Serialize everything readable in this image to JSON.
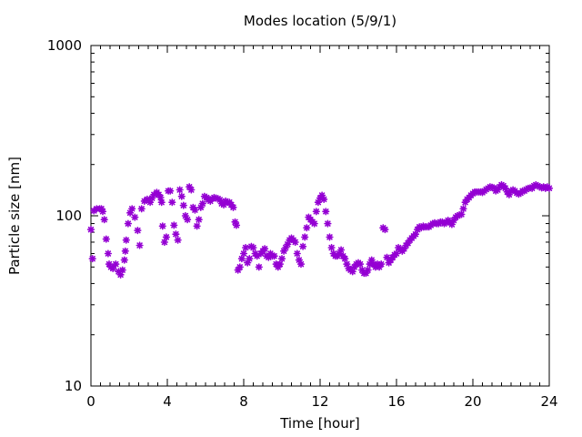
{
  "chart_data": {
    "type": "scatter",
    "title": "Modes location (5/9/1)",
    "xlabel": "Time [hour]",
    "ylabel": "Particle size [nm]",
    "xlim": [
      0,
      24
    ],
    "ylim": [
      10,
      1000
    ],
    "yscale": "log",
    "grid": false,
    "legend": "none",
    "marker_color": "#9400d3",
    "marker": "asterisk",
    "xticks": [
      "0",
      "4",
      "8",
      "12",
      "16",
      "20",
      "24"
    ],
    "yticks": [
      "10",
      "100",
      "1000"
    ],
    "series": [
      {
        "points": [
          [
            0.0,
            83
          ],
          [
            0.08,
            56
          ],
          [
            0.15,
            107
          ],
          [
            0.3,
            110
          ],
          [
            0.45,
            110
          ],
          [
            0.55,
            110
          ],
          [
            0.62,
            106
          ],
          [
            0.7,
            95
          ],
          [
            0.8,
            73
          ],
          [
            0.9,
            60
          ],
          [
            0.95,
            52
          ],
          [
            1.05,
            50
          ],
          [
            1.15,
            49
          ],
          [
            1.3,
            52
          ],
          [
            1.45,
            47
          ],
          [
            1.55,
            45
          ],
          [
            1.65,
            48
          ],
          [
            1.75,
            55
          ],
          [
            1.8,
            62
          ],
          [
            1.85,
            72
          ],
          [
            1.95,
            90
          ],
          [
            2.05,
            104
          ],
          [
            2.15,
            110
          ],
          [
            2.3,
            98
          ],
          [
            2.45,
            82
          ],
          [
            2.55,
            67
          ],
          [
            2.65,
            110
          ],
          [
            2.8,
            122
          ],
          [
            2.95,
            125
          ],
          [
            3.1,
            120
          ],
          [
            3.2,
            127
          ],
          [
            3.3,
            133
          ],
          [
            3.45,
            137
          ],
          [
            3.55,
            133
          ],
          [
            3.65,
            128
          ],
          [
            3.7,
            120
          ],
          [
            3.75,
            87
          ],
          [
            3.85,
            70
          ],
          [
            3.95,
            75
          ],
          [
            4.05,
            140
          ],
          [
            4.15,
            140
          ],
          [
            4.25,
            120
          ],
          [
            4.35,
            88
          ],
          [
            4.45,
            78
          ],
          [
            4.55,
            72
          ],
          [
            4.65,
            142
          ],
          [
            4.75,
            130
          ],
          [
            4.85,
            115
          ],
          [
            4.95,
            100
          ],
          [
            5.05,
            95
          ],
          [
            5.15,
            148
          ],
          [
            5.25,
            142
          ],
          [
            5.35,
            112
          ],
          [
            5.45,
            108
          ],
          [
            5.55,
            87
          ],
          [
            5.65,
            95
          ],
          [
            5.75,
            112
          ],
          [
            5.85,
            118
          ],
          [
            5.95,
            130
          ],
          [
            6.05,
            128
          ],
          [
            6.15,
            124
          ],
          [
            6.25,
            122
          ],
          [
            6.35,
            126
          ],
          [
            6.45,
            128
          ],
          [
            6.55,
            127
          ],
          [
            6.65,
            126
          ],
          [
            6.75,
            124
          ],
          [
            6.85,
            118
          ],
          [
            6.95,
            116
          ],
          [
            7.05,
            122
          ],
          [
            7.15,
            120
          ],
          [
            7.25,
            120
          ],
          [
            7.35,
            116
          ],
          [
            7.45,
            112
          ],
          [
            7.55,
            92
          ],
          [
            7.62,
            88
          ],
          [
            7.7,
            48
          ],
          [
            7.8,
            50
          ],
          [
            7.9,
            56
          ],
          [
            8.0,
            60
          ],
          [
            8.1,
            65
          ],
          [
            8.2,
            53
          ],
          [
            8.3,
            56
          ],
          [
            8.4,
            66
          ],
          [
            8.5,
            65
          ],
          [
            8.6,
            60
          ],
          [
            8.7,
            58
          ],
          [
            8.8,
            50
          ],
          [
            8.9,
            60
          ],
          [
            9.0,
            62
          ],
          [
            9.1,
            64
          ],
          [
            9.2,
            58
          ],
          [
            9.3,
            57
          ],
          [
            9.4,
            60
          ],
          [
            9.5,
            58
          ],
          [
            9.6,
            58
          ],
          [
            9.7,
            52
          ],
          [
            9.8,
            50
          ],
          [
            9.9,
            52
          ],
          [
            10.0,
            56
          ],
          [
            10.1,
            62
          ],
          [
            10.2,
            65
          ],
          [
            10.3,
            68
          ],
          [
            10.4,
            72
          ],
          [
            10.5,
            74
          ],
          [
            10.6,
            72
          ],
          [
            10.7,
            70
          ],
          [
            10.8,
            60
          ],
          [
            10.9,
            55
          ],
          [
            11.0,
            52
          ],
          [
            11.1,
            66
          ],
          [
            11.2,
            75
          ],
          [
            11.3,
            85
          ],
          [
            11.4,
            98
          ],
          [
            11.5,
            95
          ],
          [
            11.6,
            92
          ],
          [
            11.7,
            90
          ],
          [
            11.8,
            106
          ],
          [
            11.9,
            120
          ],
          [
            12.0,
            127
          ],
          [
            12.1,
            132
          ],
          [
            12.2,
            125
          ],
          [
            12.3,
            106
          ],
          [
            12.4,
            90
          ],
          [
            12.5,
            75
          ],
          [
            12.6,
            65
          ],
          [
            12.7,
            60
          ],
          [
            12.8,
            58
          ],
          [
            12.9,
            58
          ],
          [
            13.0,
            60
          ],
          [
            13.1,
            63
          ],
          [
            13.2,
            58
          ],
          [
            13.3,
            56
          ],
          [
            13.4,
            52
          ],
          [
            13.5,
            49
          ],
          [
            13.6,
            48
          ],
          [
            13.7,
            47
          ],
          [
            13.8,
            50
          ],
          [
            13.9,
            52
          ],
          [
            14.0,
            53
          ],
          [
            14.1,
            52
          ],
          [
            14.2,
            48
          ],
          [
            14.3,
            46
          ],
          [
            14.4,
            46
          ],
          [
            14.5,
            48
          ],
          [
            14.6,
            52
          ],
          [
            14.7,
            55
          ],
          [
            14.8,
            52
          ],
          [
            14.9,
            50
          ],
          [
            15.0,
            52
          ],
          [
            15.1,
            50
          ],
          [
            15.2,
            52
          ],
          [
            15.3,
            85
          ],
          [
            15.4,
            83
          ],
          [
            15.5,
            57
          ],
          [
            15.6,
            53
          ],
          [
            15.7,
            55
          ],
          [
            15.8,
            57
          ],
          [
            15.9,
            59
          ],
          [
            16.0,
            60
          ],
          [
            16.1,
            65
          ],
          [
            16.2,
            63
          ],
          [
            16.3,
            62
          ],
          [
            16.4,
            64
          ],
          [
            16.5,
            67
          ],
          [
            16.6,
            69
          ],
          [
            16.7,
            72
          ],
          [
            16.8,
            74
          ],
          [
            16.9,
            76
          ],
          [
            17.0,
            78
          ],
          [
            17.1,
            83
          ],
          [
            17.2,
            86
          ],
          [
            17.3,
            85
          ],
          [
            17.4,
            87
          ],
          [
            17.5,
            86
          ],
          [
            17.6,
            86
          ],
          [
            17.7,
            86
          ],
          [
            17.8,
            88
          ],
          [
            17.9,
            90
          ],
          [
            18.0,
            91
          ],
          [
            18.1,
            90
          ],
          [
            18.2,
            90
          ],
          [
            18.3,
            92
          ],
          [
            18.4,
            92
          ],
          [
            18.5,
            90
          ],
          [
            18.6,
            91
          ],
          [
            18.7,
            94
          ],
          [
            18.8,
            92
          ],
          [
            18.9,
            89
          ],
          [
            19.0,
            94
          ],
          [
            19.1,
            98
          ],
          [
            19.2,
            100
          ],
          [
            19.3,
            101
          ],
          [
            19.4,
            102
          ],
          [
            19.5,
            110
          ],
          [
            19.6,
            120
          ],
          [
            19.7,
            125
          ],
          [
            19.8,
            128
          ],
          [
            19.9,
            132
          ],
          [
            20.0,
            135
          ],
          [
            20.1,
            138
          ],
          [
            20.2,
            138
          ],
          [
            20.3,
            138
          ],
          [
            20.4,
            138
          ],
          [
            20.5,
            137
          ],
          [
            20.6,
            140
          ],
          [
            20.7,
            143
          ],
          [
            20.8,
            145
          ],
          [
            20.9,
            148
          ],
          [
            21.0,
            147
          ],
          [
            21.1,
            146
          ],
          [
            21.2,
            140
          ],
          [
            21.3,
            142
          ],
          [
            21.4,
            148
          ],
          [
            21.5,
            152
          ],
          [
            21.6,
            150
          ],
          [
            21.7,
            145
          ],
          [
            21.8,
            138
          ],
          [
            21.9,
            133
          ],
          [
            22.0,
            140
          ],
          [
            22.1,
            142
          ],
          [
            22.2,
            140
          ],
          [
            22.3,
            136
          ],
          [
            22.4,
            134
          ],
          [
            22.5,
            136
          ],
          [
            22.6,
            140
          ],
          [
            22.7,
            140
          ],
          [
            22.8,
            143
          ],
          [
            22.9,
            145
          ],
          [
            23.0,
            146
          ],
          [
            23.1,
            145
          ],
          [
            23.2,
            150
          ],
          [
            23.3,
            152
          ],
          [
            23.4,
            150
          ],
          [
            23.5,
            148
          ],
          [
            23.6,
            146
          ],
          [
            23.7,
            148
          ],
          [
            23.8,
            145
          ],
          [
            23.9,
            148
          ],
          [
            24.0,
            145
          ]
        ]
      }
    ]
  }
}
